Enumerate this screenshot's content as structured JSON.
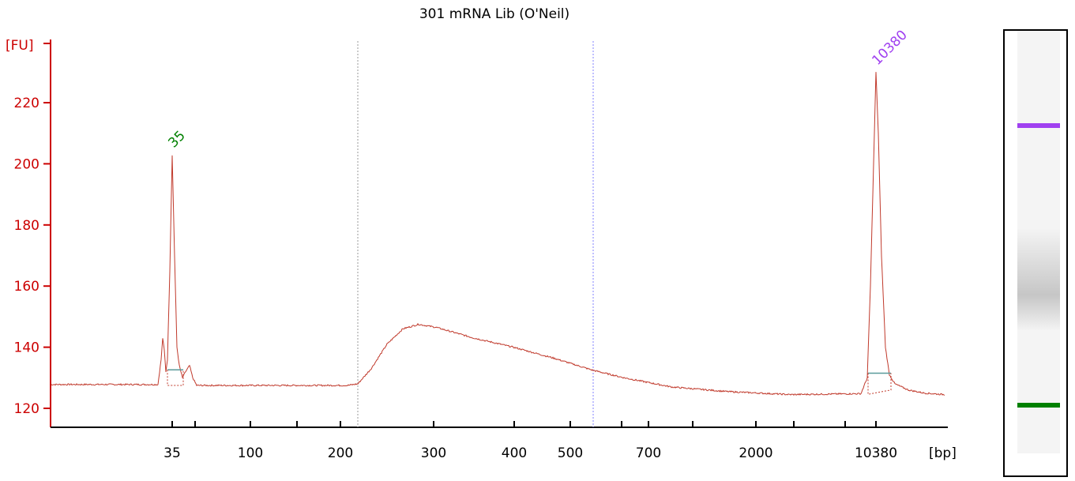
{
  "chart_data": {
    "type": "line",
    "title": "301 mRNA Lib (O'Neil)",
    "ylabel": "[FU]",
    "xlabel": "[bp]",
    "ylim": [
      114,
      245
    ],
    "yticks": [
      120,
      140,
      160,
      180,
      200,
      220
    ],
    "x_tick_labels": [
      "35",
      "100",
      "200",
      "300",
      "400",
      "500",
      "700",
      "2000",
      "10380"
    ],
    "x_minor_ticks": 5,
    "colors": {
      "trace": "#c0392b",
      "axis": "#cc0000",
      "lower_marker": "#008000",
      "upper_marker": "#a040f0"
    },
    "peaks": [
      {
        "label": "35",
        "height_fu": 203,
        "color": "#008000"
      },
      {
        "label": "10380",
        "height_fu": 230,
        "color": "#a040f0"
      }
    ],
    "series": [
      {
        "points": [
          [
            "<35",
            127.5
          ],
          [
            "35 (left shoulder)",
            143
          ],
          [
            "35",
            203
          ],
          [
            "35 (right shoulder)",
            134
          ],
          [
            "100",
            127.5
          ],
          [
            "200",
            127.5
          ],
          [
            "~240",
            133
          ],
          [
            "300",
            147
          ],
          [
            "400",
            140
          ],
          [
            "500",
            134
          ],
          [
            "700",
            129
          ],
          [
            "2000",
            124.5
          ],
          [
            "10380",
            230
          ],
          [
            ">10380",
            124.5
          ]
        ]
      }
    ],
    "region_markers": [
      "~220",
      "~560"
    ]
  },
  "gel": {
    "lower_marker_color": "#008000",
    "upper_marker_color": "#a040f0"
  }
}
